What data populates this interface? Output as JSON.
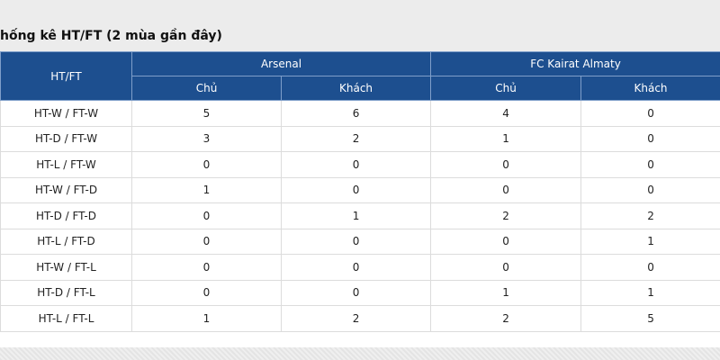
{
  "header": {
    "title": "hống kê HT/FT (2 mùa gần đây)"
  },
  "table": {
    "corner": "HT/FT",
    "teams": [
      "Arsenal",
      "FC Kairat Almaty"
    ],
    "subheaders": [
      "Chủ",
      "Khách",
      "Chủ",
      "Khách"
    ],
    "rows": [
      [
        "HT-W / FT-W",
        5,
        6,
        4,
        0
      ],
      [
        "HT-D / FT-W",
        3,
        2,
        1,
        0
      ],
      [
        "HT-L / FT-W",
        0,
        0,
        0,
        0
      ],
      [
        "HT-W / FT-D",
        1,
        0,
        0,
        0
      ],
      [
        "HT-D / FT-D",
        0,
        1,
        2,
        2
      ],
      [
        "HT-L / FT-D",
        0,
        0,
        0,
        1
      ],
      [
        "HT-W / FT-L",
        0,
        0,
        0,
        0
      ],
      [
        "HT-D / FT-L",
        0,
        0,
        1,
        1
      ],
      [
        "HT-L / FT-L",
        1,
        2,
        2,
        5
      ]
    ]
  }
}
